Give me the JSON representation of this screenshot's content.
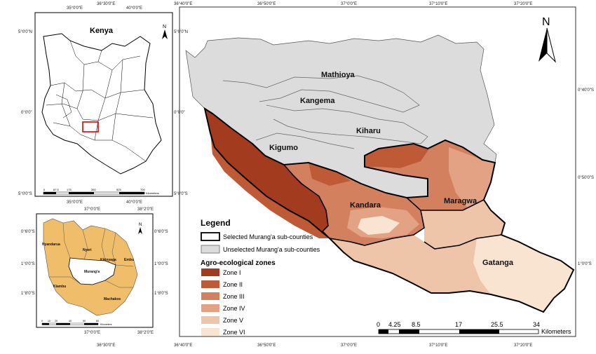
{
  "main_map": {
    "subcounty_labels": [
      "Mathioya",
      "Kangema",
      "Kiharu",
      "Kigumo",
      "Kandara",
      "Maragwa",
      "Gatanga"
    ],
    "top_coords": [
      "36°30'0\"E",
      "36°40'0\"E",
      "36°50'0\"E",
      "37°0'0\"E",
      "37°10'0\"E",
      "37°20'0\"E"
    ],
    "bottom_coords": [
      "36°30'0\"E",
      "36°40'0\"E",
      "36°50'0\"E",
      "37°0'0\"E",
      "37°10'0\"E",
      "37°20'0\"E"
    ],
    "right_coords": [
      "0°40'0\"S",
      "0°50'0\"S",
      "1°0'0\"S"
    ],
    "north_label": "N",
    "scalebar": {
      "ticks": [
        "0",
        "4.25",
        "8.5",
        "17",
        "25.5",
        "34"
      ],
      "unit": "Kilometers"
    }
  },
  "legend": {
    "title": "Legend",
    "boundary_items": [
      {
        "label": "Selected Murang'a sub-counties",
        "color": "#ffffff"
      },
      {
        "label": "Unselected Murang'a sub-counties",
        "color": "#dcdcdc"
      }
    ],
    "zones_title": "Agro-ecological zones",
    "zones": [
      {
        "label": "Zone I",
        "color": "#a33b1e"
      },
      {
        "label": "Zone II",
        "color": "#bf5a36"
      },
      {
        "label": "Zone III",
        "color": "#d3805e"
      },
      {
        "label": "Zone IV",
        "color": "#e2a283"
      },
      {
        "label": "Zone V",
        "color": "#efc5aa"
      },
      {
        "label": "Zone VI",
        "color": "#f9e4d2"
      }
    ]
  },
  "kenya_inset": {
    "title": "Kenya",
    "north_label": "N",
    "top_coords": [
      "35°0'0\"E",
      "40°0'0\"E"
    ],
    "bottom_coords": [
      "35°0'0\"E",
      "40°0'0\"E"
    ],
    "left_coords": [
      "5°0'0\"N",
      "0°0'0\"",
      "5°0'0\"S"
    ],
    "right_coords": [
      "5°0'0\"N",
      "0°0'0\"",
      "5°0'0\"S"
    ],
    "scalebar": {
      "ticks": [
        "0",
        "87.5",
        "175",
        "350",
        "525",
        "700"
      ],
      "unit": "Kilometers"
    }
  },
  "muranga_inset": {
    "north_label": "N",
    "top_coords": [
      "37°0'0\"E",
      "38°2'0\"E"
    ],
    "bottom_coords": [
      "37°0'0\"E",
      "38°2'0\"E"
    ],
    "left_coords": [
      "0°6'0\"S",
      "1°0'0\"S",
      "1°8'0\"S"
    ],
    "right_coords": [
      "0°6'0\"S",
      "1°0'0\"S",
      "1°8'0\"S"
    ],
    "county_labels": [
      "Nyandarua",
      "Nyeri",
      "Kirinyaga",
      "Embu",
      "Murang'a",
      "Kiambu",
      "Machakos"
    ],
    "scalebar": {
      "ticks": [
        "0",
        "10",
        "20",
        "40",
        "60",
        "80"
      ],
      "unit": "Kilometers"
    }
  }
}
